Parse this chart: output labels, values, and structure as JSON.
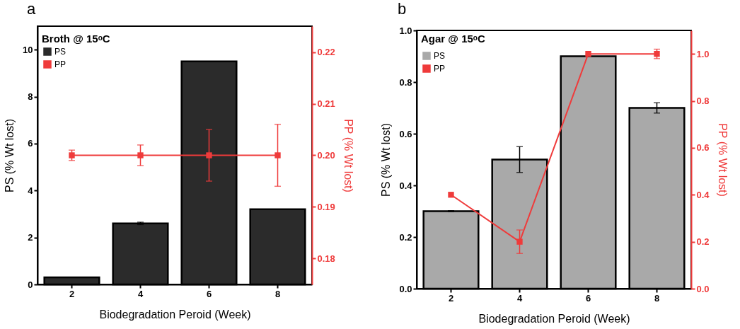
{
  "chart_data": [
    {
      "type": "bar",
      "title": "Broth @ 15ᵒC",
      "annotations": [
        "a"
      ],
      "categories": [
        "2",
        "4",
        "6",
        "8"
      ],
      "xlabel": "Biodegradation Peroid (Week)",
      "ylabel": "PS (% Wt lost)",
      "y2label": "PP (% Wt lost)",
      "ylim": [
        0,
        11
      ],
      "yticks": [
        0,
        2,
        4,
        6,
        8,
        10
      ],
      "y2lim": [
        0.175,
        0.225
      ],
      "y2ticks": [
        0.18,
        0.19,
        {
          "value": 0.2,
          "label": "0.20"
        },
        0.21,
        0.22
      ],
      "legend": "top left",
      "grid": false,
      "marker": "square",
      "series": [
        {
          "name": "PS",
          "color": "#2b2b2b",
          "values": [
            0.3,
            2.6,
            9.5,
            3.2
          ],
          "errors": [
            null,
            0.05,
            null,
            null
          ]
        },
        {
          "name": "PP",
          "type": "line",
          "axis": "y2",
          "color": "#ef3b3b",
          "values": [
            0.2,
            0.2,
            0.2,
            0.2
          ],
          "errors": [
            0.001,
            0.002,
            0.005,
            0.006
          ]
        }
      ]
    },
    {
      "type": "bar",
      "title": "Agar @ 15ᵒC",
      "annotations": [
        "b"
      ],
      "categories": [
        "2",
        "4",
        "6",
        "8"
      ],
      "xlabel": "Biodegradation Peroid (Week)",
      "ylabel": "PS (% Wt lost)",
      "y2label": "PP (% Wt lost)",
      "ylim": [
        0,
        1
      ],
      "yticks": [
        {
          "value": 0,
          "label": "0.0"
        },
        0.2,
        0.4,
        0.6,
        0.8,
        {
          "value": 1,
          "label": "1.0"
        }
      ],
      "y2lim": [
        0,
        1.1
      ],
      "y2ticks": [
        {
          "value": 0,
          "label": "0.0"
        },
        0.2,
        0.4,
        0.6,
        0.8,
        {
          "value": 1,
          "label": "1.0"
        }
      ],
      "legend": "top left",
      "grid": false,
      "marker": "square",
      "series": [
        {
          "name": "PS",
          "color": "#a9a9a9",
          "values": [
            0.3,
            0.5,
            0.9,
            0.7
          ],
          "errors": [
            0.002,
            0.05,
            null,
            0.02
          ]
        },
        {
          "name": "PP",
          "type": "line",
          "axis": "y2",
          "color": "#ef3b3b",
          "values": [
            0.4,
            0.2,
            1.0,
            1.0
          ],
          "errors": [
            null,
            0.05,
            null,
            0.02
          ]
        }
      ]
    }
  ]
}
